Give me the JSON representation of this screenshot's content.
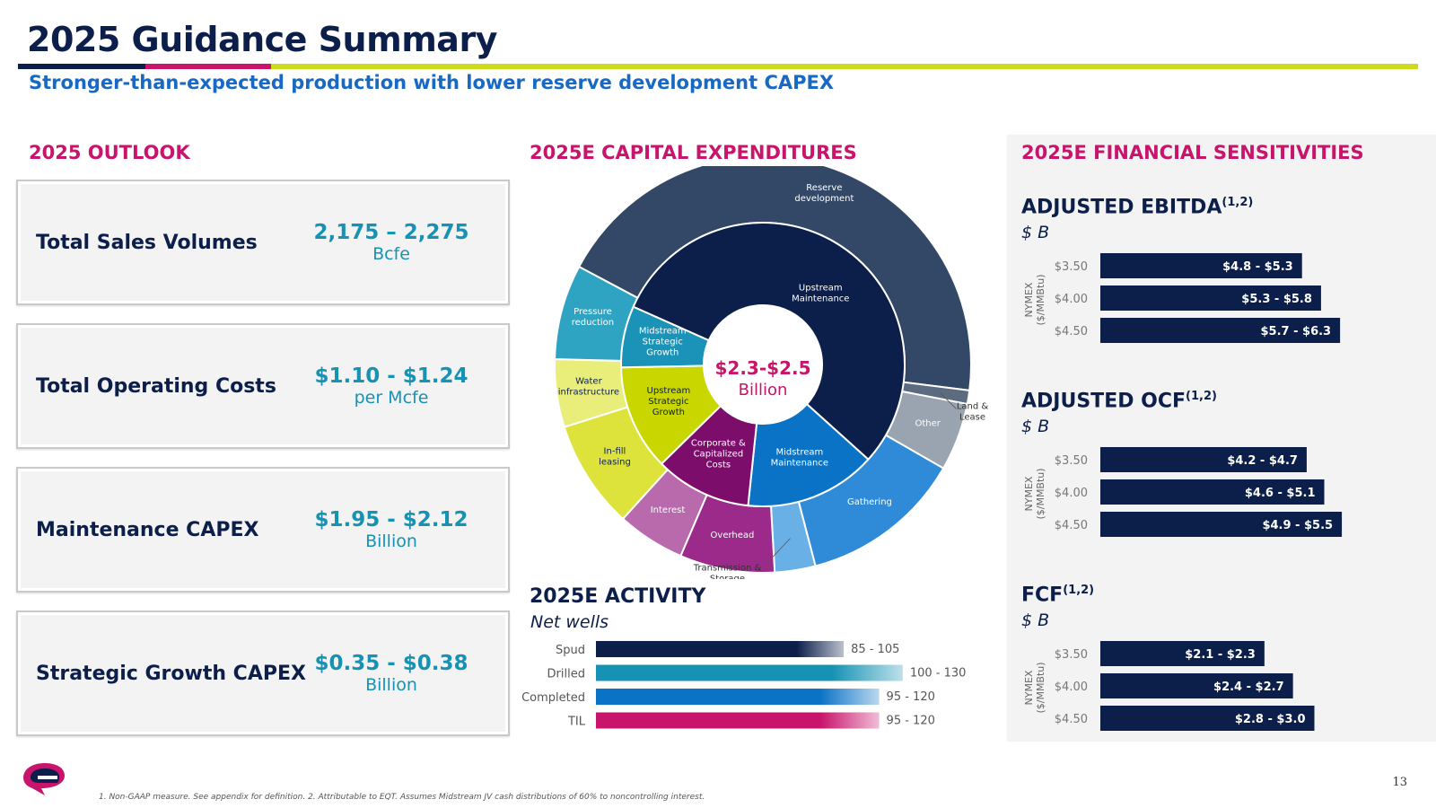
{
  "header": {
    "title": "2025 Guidance Summary",
    "subtitle": "Stronger-than-expected production with lower reserve development CAPEX",
    "rule_colors": [
      "#0c1f4a",
      "#c8146b",
      "#cddc1a"
    ]
  },
  "outlook": {
    "heading": "2025 OUTLOOK",
    "cards": [
      {
        "label": "Total Sales Volumes",
        "value": "2,175 – 2,275",
        "unit": "Bcfe"
      },
      {
        "label": "Total Operating Costs",
        "value": "$1.10 - $1.24",
        "unit": "per Mcfe"
      },
      {
        "label": "Maintenance CAPEX",
        "value": "$1.95 - $2.12",
        "unit": "Billion"
      },
      {
        "label": "Strategic Growth CAPEX",
        "value": "$0.35 - $0.38",
        "unit": "Billion"
      }
    ]
  },
  "capex": {
    "heading": "2025E CAPITAL EXPENDITURES",
    "center_value": "$2.3-$2.5",
    "center_unit": "Billion"
  },
  "activity": {
    "heading": "2025E ACTIVITY",
    "subheading": "Net wells"
  },
  "sensitivities": {
    "heading": "2025E FINANCIAL SENSITIVITIES",
    "axis_label_1": "NYMEX",
    "axis_label_2": "($/MMBtu)",
    "groups": [
      {
        "title": "ADJUSTED EBITDA",
        "sup": "(1,2)",
        "unit": "$ B"
      },
      {
        "title": "ADJUSTED OCF",
        "sup": "(1,2)",
        "unit": "$ B"
      },
      {
        "title": "FCF",
        "sup": "(1,2)",
        "unit": "$ B"
      }
    ]
  },
  "footer": {
    "footnote": "1. Non-GAAP measure. See appendix for definition. 2. Attributable to EQT. Assumes Midstream JV cash distributions of 60% to noncontrolling interest.",
    "page_number": "13"
  },
  "chart_data": [
    {
      "type": "pie",
      "title": "2025E CAPITAL EXPENDITURES",
      "center_label": "$2.3-$2.5 Billion",
      "outer_ring": [
        {
          "label": "Reserve development",
          "value": 42,
          "color": "#334866"
        },
        {
          "label": "Land & Lease",
          "value": 1,
          "color": "#5c6b80"
        },
        {
          "label": "Other",
          "value": 5,
          "color": "#9aa3b0"
        },
        {
          "label": "Gathering",
          "value": 12,
          "color": "#2f8ad8"
        },
        {
          "label": "Transmission & Storage",
          "value": 3,
          "color": "#69b0e6"
        },
        {
          "label": "Overhead",
          "value": 7,
          "color": "#9b2a8a"
        },
        {
          "label": "Interest",
          "value": 5,
          "color": "#b86aad"
        },
        {
          "label": "In-fill leasing",
          "value": 8,
          "color": "#dde33a"
        },
        {
          "label": "Water infrastructure",
          "value": 5,
          "color": "#e9ee7b"
        },
        {
          "label": "Pressure reduction",
          "value": 7,
          "color": "#2ea3c2"
        }
      ],
      "inner_ring": [
        {
          "label": "Upstream Maintenance",
          "value": 55,
          "color": "#0c1f4a"
        },
        {
          "label": "Midstream Maintenance",
          "value": 15,
          "color": "#0b73c6"
        },
        {
          "label": "Corporate & Capitalized Costs",
          "value": 11,
          "color": "#7d0d6a"
        },
        {
          "label": "Upstream Strategic Growth",
          "value": 12,
          "color": "#c9d600"
        },
        {
          "label": "Midstream Strategic Growth",
          "value": 7,
          "color": "#1b93b8"
        }
      ]
    },
    {
      "type": "bar",
      "title": "2025E ACTIVITY",
      "subtitle": "Net wells",
      "categories": [
        "Spud",
        "Drilled",
        "Completed",
        "TIL"
      ],
      "series": [
        {
          "name": "low",
          "values": [
            85,
            100,
            95,
            95
          ]
        },
        {
          "name": "high",
          "values": [
            105,
            130,
            120,
            120
          ]
        }
      ],
      "labels": [
        "85 - 105",
        "100 - 130",
        "95 - 120",
        "95 - 120"
      ],
      "colors": [
        "#0c1f4a",
        "#1692b4",
        "#0b73c6",
        "#c8146b"
      ],
      "xlim": [
        0,
        135
      ]
    },
    {
      "type": "bar",
      "title": "ADJUSTED EBITDA (1,2)",
      "ylabel": "NYMEX ($/MMBtu)",
      "categories": [
        "$3.50",
        "$4.00",
        "$4.50"
      ],
      "series": [
        {
          "name": "low",
          "values": [
            4.8,
            5.3,
            5.7
          ]
        },
        {
          "name": "high",
          "values": [
            5.3,
            5.8,
            6.3
          ]
        }
      ],
      "labels": [
        "$4.8 - $5.3",
        "$5.3 - $5.8",
        "$5.7 - $6.3"
      ],
      "xlim": [
        0,
        7.5
      ]
    },
    {
      "type": "bar",
      "title": "ADJUSTED OCF (1,2)",
      "ylabel": "NYMEX ($/MMBtu)",
      "categories": [
        "$3.50",
        "$4.00",
        "$4.50"
      ],
      "series": [
        {
          "name": "low",
          "values": [
            4.2,
            4.6,
            4.9
          ]
        },
        {
          "name": "high",
          "values": [
            4.7,
            5.1,
            5.5
          ]
        }
      ],
      "labels": [
        "$4.2 - $4.7",
        "$4.6 - $5.1",
        "$4.9 - $5.5"
      ],
      "xlim": [
        0,
        6.5
      ]
    },
    {
      "type": "bar",
      "title": "FCF (1,2)",
      "ylabel": "NYMEX ($/MMBtu)",
      "categories": [
        "$3.50",
        "$4.00",
        "$4.50"
      ],
      "series": [
        {
          "name": "low",
          "values": [
            2.1,
            2.4,
            2.8
          ]
        },
        {
          "name": "high",
          "values": [
            2.3,
            2.7,
            3.0
          ]
        }
      ],
      "labels": [
        "$2.1 - $2.3",
        "$2.4 - $2.7",
        "$2.8 - $3.0"
      ],
      "xlim": [
        0,
        4.0
      ]
    }
  ]
}
